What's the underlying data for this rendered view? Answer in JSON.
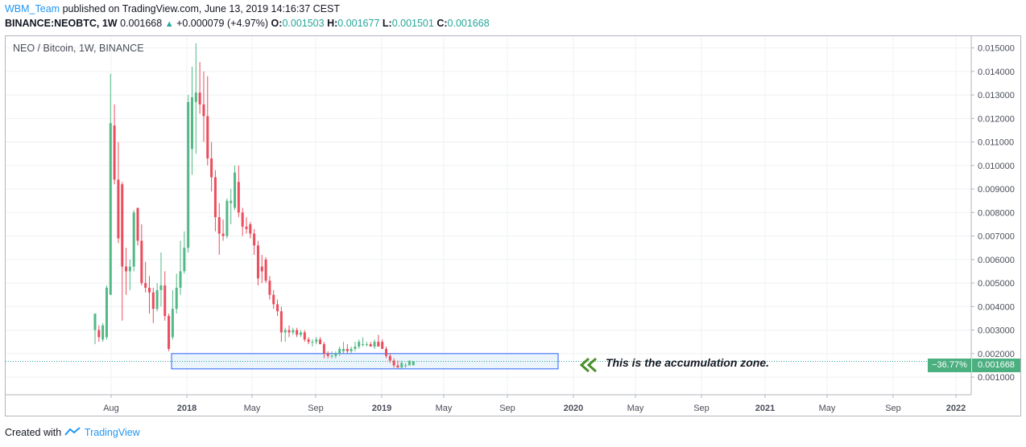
{
  "header": {
    "user": "WBM_Team",
    "published_text": "published on TradingView.com, June 13, 2019 14:16:37 CEST",
    "ticker": "BINANCE:NEOBTC, 1W",
    "last": "0.001668",
    "change": "+0.000079 (+4.97%)",
    "o_label": "O:",
    "o_value": "0.001503",
    "h_label": "H:",
    "h_value": "0.001677",
    "l_label": "L:",
    "l_value": "0.001501",
    "c_label": "C:",
    "c_value": "0.001668"
  },
  "symbol_label": "NEO / Bitcoin, 1W, BINANCE",
  "annotation": "This is the accumulation zone.",
  "price_badge": {
    "percent": "−36.77%",
    "price": "0.001668"
  },
  "footer": {
    "created_with": "Created with",
    "brand": "TradingView"
  },
  "colors": {
    "up": "#53b987",
    "down": "#eb4d5c",
    "zone_fill": "#e3f0fa",
    "zone_border": "#2962ff",
    "arrow": "#4a8f28",
    "link": "#2196f3"
  },
  "chart_data": {
    "type": "candlestick",
    "title": "NEO / Bitcoin, 1W, BINANCE",
    "ylim": [
      0.00025,
      0.0155
    ],
    "y_ticks": [
      "0.001000",
      "0.002000",
      "0.003000",
      "0.004000",
      "0.005000",
      "0.006000",
      "0.007000",
      "0.008000",
      "0.009000",
      "0.010000",
      "0.011000",
      "0.012000",
      "0.013000",
      "0.014000",
      "0.015000"
    ],
    "x_ticks": [
      "Aug",
      "2018",
      "May",
      "Sep",
      "2019",
      "May",
      "Sep",
      "2020",
      "May",
      "Sep",
      "2021",
      "May",
      "Sep",
      "2022"
    ],
    "x_ticks_bold": [
      "2018",
      "2019",
      "2020",
      "2021",
      "2022"
    ],
    "last_price": 0.001668,
    "accumulation_zone": {
      "price_low": 0.00135,
      "price_high": 0.002,
      "from": "2017-11",
      "to": "2019-11"
    },
    "candles": [
      {
        "o": 0.003,
        "h": 0.0037,
        "l": 0.0024,
        "c": 0.0037
      },
      {
        "o": 0.003,
        "h": 0.0032,
        "l": 0.0025,
        "c": 0.0027
      },
      {
        "o": 0.0026,
        "h": 0.0033,
        "l": 0.0025,
        "c": 0.0032
      },
      {
        "o": 0.0027,
        "h": 0.0049,
        "l": 0.0026,
        "c": 0.0048
      },
      {
        "o": 0.0045,
        "h": 0.0139,
        "l": 0.0045,
        "c": 0.0118
      },
      {
        "o": 0.0117,
        "h": 0.0126,
        "l": 0.0092,
        "c": 0.0094
      },
      {
        "o": 0.0094,
        "h": 0.011,
        "l": 0.0067,
        "c": 0.0069
      },
      {
        "o": 0.0092,
        "h": 0.0093,
        "l": 0.0034,
        "c": 0.0057
      },
      {
        "o": 0.0057,
        "h": 0.0065,
        "l": 0.0045,
        "c": 0.0055
      },
      {
        "o": 0.0055,
        "h": 0.006,
        "l": 0.0047,
        "c": 0.0057
      },
      {
        "o": 0.0057,
        "h": 0.0081,
        "l": 0.0055,
        "c": 0.008
      },
      {
        "o": 0.0082,
        "h": 0.0082,
        "l": 0.0066,
        "c": 0.0068
      },
      {
        "o": 0.0068,
        "h": 0.0075,
        "l": 0.0049,
        "c": 0.005
      },
      {
        "o": 0.005,
        "h": 0.0059,
        "l": 0.0046,
        "c": 0.0048
      },
      {
        "o": 0.0048,
        "h": 0.0053,
        "l": 0.0037,
        "c": 0.0046
      },
      {
        "o": 0.0046,
        "h": 0.0048,
        "l": 0.0033,
        "c": 0.0039
      },
      {
        "o": 0.0039,
        "h": 0.005,
        "l": 0.0038,
        "c": 0.0047
      },
      {
        "o": 0.0047,
        "h": 0.0063,
        "l": 0.004,
        "c": 0.0049
      },
      {
        "o": 0.0049,
        "h": 0.0055,
        "l": 0.0034,
        "c": 0.0036
      },
      {
        "o": 0.0036,
        "h": 0.0037,
        "l": 0.0021,
        "c": 0.0022
      },
      {
        "o": 0.0027,
        "h": 0.0047,
        "l": 0.0026,
        "c": 0.0039
      },
      {
        "o": 0.0039,
        "h": 0.0054,
        "l": 0.0037,
        "c": 0.0048
      },
      {
        "o": 0.0048,
        "h": 0.0068,
        "l": 0.0045,
        "c": 0.0055
      },
      {
        "o": 0.0055,
        "h": 0.0072,
        "l": 0.0054,
        "c": 0.0065
      },
      {
        "o": 0.0065,
        "h": 0.013,
        "l": 0.0063,
        "c": 0.0127
      },
      {
        "o": 0.0107,
        "h": 0.0142,
        "l": 0.0096,
        "c": 0.0129
      },
      {
        "o": 0.0127,
        "h": 0.0152,
        "l": 0.0105,
        "c": 0.0131
      },
      {
        "o": 0.0131,
        "h": 0.0144,
        "l": 0.0122,
        "c": 0.0126
      },
      {
        "o": 0.0126,
        "h": 0.014,
        "l": 0.011,
        "c": 0.0121
      },
      {
        "o": 0.0121,
        "h": 0.0138,
        "l": 0.01,
        "c": 0.0103
      },
      {
        "o": 0.0103,
        "h": 0.011,
        "l": 0.0089,
        "c": 0.0095
      },
      {
        "o": 0.0095,
        "h": 0.0098,
        "l": 0.0072,
        "c": 0.0078
      },
      {
        "o": 0.0078,
        "h": 0.0084,
        "l": 0.0062,
        "c": 0.0071
      },
      {
        "o": 0.0071,
        "h": 0.0077,
        "l": 0.0068,
        "c": 0.007
      },
      {
        "o": 0.007,
        "h": 0.0086,
        "l": 0.0069,
        "c": 0.0085
      },
      {
        "o": 0.0084,
        "h": 0.009,
        "l": 0.0075,
        "c": 0.0085
      },
      {
        "o": 0.0082,
        "h": 0.01,
        "l": 0.0081,
        "c": 0.0097
      },
      {
        "o": 0.0093,
        "h": 0.01,
        "l": 0.0078,
        "c": 0.008
      },
      {
        "o": 0.008,
        "h": 0.0082,
        "l": 0.007,
        "c": 0.0074
      },
      {
        "o": 0.0074,
        "h": 0.0078,
        "l": 0.0071,
        "c": 0.0073
      },
      {
        "o": 0.0075,
        "h": 0.0076,
        "l": 0.0069,
        "c": 0.0071
      },
      {
        "o": 0.0071,
        "h": 0.0073,
        "l": 0.0062,
        "c": 0.0066
      },
      {
        "o": 0.0066,
        "h": 0.0068,
        "l": 0.0049,
        "c": 0.0052
      },
      {
        "o": 0.0057,
        "h": 0.0062,
        "l": 0.005,
        "c": 0.0055
      },
      {
        "o": 0.006,
        "h": 0.0061,
        "l": 0.005,
        "c": 0.0051
      },
      {
        "o": 0.0051,
        "h": 0.0053,
        "l": 0.0043,
        "c": 0.0045
      },
      {
        "o": 0.0045,
        "h": 0.0047,
        "l": 0.0039,
        "c": 0.0041
      },
      {
        "o": 0.0041,
        "h": 0.0043,
        "l": 0.0036,
        "c": 0.0038
      },
      {
        "o": 0.0038,
        "h": 0.004,
        "l": 0.0025,
        "c": 0.0029
      },
      {
        "o": 0.0029,
        "h": 0.0031,
        "l": 0.0025,
        "c": 0.003
      },
      {
        "o": 0.003,
        "h": 0.0032,
        "l": 0.0027,
        "c": 0.0029
      },
      {
        "o": 0.0029,
        "h": 0.0031,
        "l": 0.0028,
        "c": 0.003
      },
      {
        "o": 0.003,
        "h": 0.0031,
        "l": 0.0027,
        "c": 0.0028
      },
      {
        "o": 0.0028,
        "h": 0.003,
        "l": 0.0027,
        "c": 0.0029
      },
      {
        "o": 0.0029,
        "h": 0.003,
        "l": 0.0025,
        "c": 0.0026
      },
      {
        "o": 0.0026,
        "h": 0.0027,
        "l": 0.0024,
        "c": 0.0025
      },
      {
        "o": 0.0025,
        "h": 0.0026,
        "l": 0.0023,
        "c": 0.0025
      },
      {
        "o": 0.0025,
        "h": 0.0027,
        "l": 0.0024,
        "c": 0.0026
      },
      {
        "o": 0.0026,
        "h": 0.0027,
        "l": 0.0024,
        "c": 0.0024
      },
      {
        "o": 0.0024,
        "h": 0.0025,
        "l": 0.0018,
        "c": 0.002
      },
      {
        "o": 0.002,
        "h": 0.0021,
        "l": 0.0018,
        "c": 0.0019
      },
      {
        "o": 0.0019,
        "h": 0.0021,
        "l": 0.0018,
        "c": 0.0019
      },
      {
        "o": 0.0019,
        "h": 0.0021,
        "l": 0.0018,
        "c": 0.002
      },
      {
        "o": 0.002,
        "h": 0.0023,
        "l": 0.0019,
        "c": 0.0022
      },
      {
        "o": 0.0021,
        "h": 0.0025,
        "l": 0.002,
        "c": 0.0022
      },
      {
        "o": 0.0022,
        "h": 0.0024,
        "l": 0.002,
        "c": 0.0021
      },
      {
        "o": 0.0021,
        "h": 0.0023,
        "l": 0.002,
        "c": 0.0022
      },
      {
        "o": 0.0022,
        "h": 0.0025,
        "l": 0.0021,
        "c": 0.0023
      },
      {
        "o": 0.0023,
        "h": 0.0026,
        "l": 0.0022,
        "c": 0.0025
      },
      {
        "o": 0.0024,
        "h": 0.0027,
        "l": 0.0023,
        "c": 0.0024
      },
      {
        "o": 0.0024,
        "h": 0.0025,
        "l": 0.0023,
        "c": 0.0024
      },
      {
        "o": 0.0024,
        "h": 0.0025,
        "l": 0.0023,
        "c": 0.0023
      },
      {
        "o": 0.0023,
        "h": 0.0026,
        "l": 0.0022,
        "c": 0.0025
      },
      {
        "o": 0.0025,
        "h": 0.0028,
        "l": 0.0023,
        "c": 0.0023
      },
      {
        "o": 0.0025,
        "h": 0.0026,
        "l": 0.0022,
        "c": 0.0022
      },
      {
        "o": 0.0022,
        "h": 0.0023,
        "l": 0.0018,
        "c": 0.0019
      },
      {
        "o": 0.0019,
        "h": 0.002,
        "l": 0.0016,
        "c": 0.0017
      },
      {
        "o": 0.0017,
        "h": 0.0018,
        "l": 0.0014,
        "c": 0.0015
      },
      {
        "o": 0.0015,
        "h": 0.0017,
        "l": 0.0014,
        "c": 0.0014
      },
      {
        "o": 0.0014,
        "h": 0.0017,
        "l": 0.0014,
        "c": 0.0016
      },
      {
        "o": 0.0015,
        "h": 0.0016,
        "l": 0.0014,
        "c": 0.0015
      },
      {
        "o": 0.0015,
        "h": 0.0017,
        "l": 0.0015,
        "c": 0.0017
      },
      {
        "o": 0.001503,
        "h": 0.001677,
        "l": 0.001501,
        "c": 0.001668
      }
    ]
  }
}
